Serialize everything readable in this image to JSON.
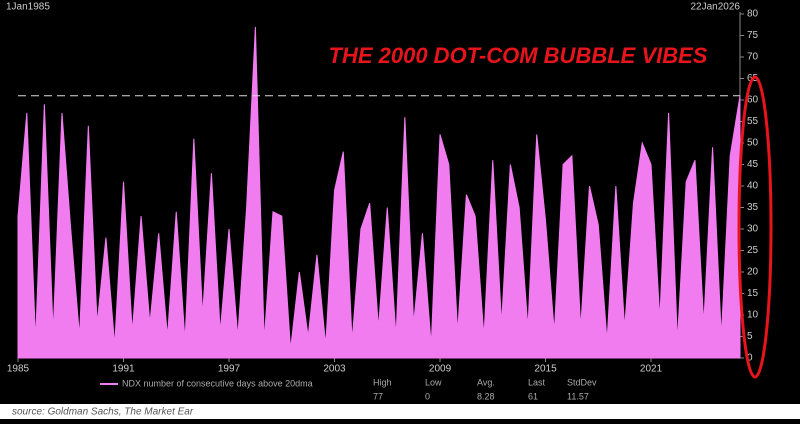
{
  "chart_data": {
    "type": "area",
    "title": "THE 2000 DOT-COM BUBBLE VIBES",
    "start_label": "1Jan1985",
    "end_label": "22Jan2026",
    "source": "source: Goldman Sachs, The Market Ear",
    "series": [
      {
        "name": "NDX number of consecutive days above 20dma",
        "color": "#f07cf0",
        "x": [
          1985,
          1985.5,
          1986,
          1986.5,
          1987,
          1987.5,
          1988,
          1988.5,
          1989,
          1989.5,
          1990,
          1990.5,
          1991,
          1991.5,
          1992,
          1992.5,
          1993,
          1993.5,
          1994,
          1994.5,
          1995,
          1995.5,
          1996,
          1996.5,
          1997,
          1997.5,
          1998,
          1998.5,
          1999,
          1999.5,
          2000,
          2000.5,
          2001,
          2001.5,
          2002,
          2002.5,
          2003,
          2003.5,
          2004,
          2004.5,
          2005,
          2005.5,
          2006,
          2006.5,
          2007,
          2007.5,
          2008,
          2008.5,
          2009,
          2009.5,
          2010,
          2010.5,
          2011,
          2011.5,
          2012,
          2012.5,
          2013,
          2013.5,
          2014,
          2014.5,
          2015,
          2015.5,
          2016,
          2016.5,
          2017,
          2017.5,
          2018,
          2018.5,
          2019,
          2019.5,
          2020,
          2020.5,
          2021,
          2021.5,
          2022,
          2022.5,
          2023,
          2023.5,
          2024,
          2024.5,
          2025,
          2025.5,
          2026.06
        ],
        "values": [
          33,
          57,
          4,
          59,
          6,
          57,
          30,
          5,
          54,
          8,
          28,
          3,
          41,
          6,
          33,
          8,
          29,
          5,
          34,
          4,
          51,
          10,
          43,
          6,
          30,
          5,
          35,
          77,
          4,
          34,
          33,
          2,
          20,
          5,
          24,
          3,
          39,
          48,
          4,
          30,
          36,
          7,
          35,
          5,
          56,
          8,
          29,
          3,
          52,
          45,
          6,
          38,
          33,
          5,
          46,
          8,
          45,
          35,
          7,
          52,
          32,
          6,
          45,
          47,
          7,
          40,
          31,
          4,
          40,
          7,
          36,
          50,
          45,
          9,
          57,
          4,
          41,
          46,
          8,
          49,
          5,
          47,
          61
        ]
      }
    ],
    "stats": {
      "headers": [
        "High",
        "Low",
        "Avg.",
        "Last",
        "StdDev"
      ],
      "values": [
        77,
        0,
        8.28,
        61,
        11.57
      ]
    },
    "reference_line": 61,
    "xlim": [
      1985,
      2026.06
    ],
    "xticks": [
      1985,
      1991,
      1997,
      2003,
      2009,
      2015,
      2021
    ],
    "ylim": [
      0,
      80
    ],
    "yticks": [
      0,
      5,
      10,
      15,
      20,
      25,
      30,
      35,
      40,
      45,
      50,
      55,
      60,
      65,
      70,
      75,
      80
    ]
  }
}
